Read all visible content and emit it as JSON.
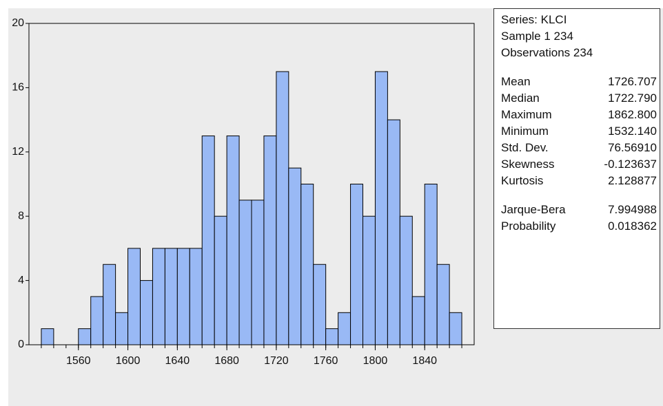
{
  "chart_data": {
    "type": "histogram",
    "bins": [
      1530,
      1540,
      1550,
      1560,
      1570,
      1580,
      1590,
      1600,
      1610,
      1620,
      1630,
      1640,
      1650,
      1660,
      1670,
      1680,
      1690,
      1700,
      1710,
      1720,
      1730,
      1740,
      1750,
      1760,
      1770,
      1780,
      1790,
      1800,
      1810,
      1820,
      1830,
      1840,
      1850,
      1860,
      1870
    ],
    "values": [
      1,
      0,
      0,
      1,
      3,
      5,
      2,
      6,
      4,
      6,
      6,
      6,
      6,
      13,
      8,
      13,
      9,
      9,
      13,
      17,
      11,
      10,
      5,
      1,
      2,
      10,
      8,
      17,
      14,
      8,
      3,
      10,
      5,
      2
    ],
    "color": "#99b9f5",
    "xlim": [
      1520,
      1880
    ],
    "xticks": [
      1560,
      1600,
      1640,
      1680,
      1720,
      1760,
      1800,
      1840
    ],
    "ylim": [
      0,
      20
    ],
    "yticks": [
      0,
      4,
      8,
      12,
      16,
      20
    ],
    "info": [
      "Series: KLCI",
      "Sample 1 234",
      "Observations 234"
    ],
    "stats": [
      {
        "label": "Mean",
        "value": "1726.707"
      },
      {
        "label": "Median",
        "value": "1722.790"
      },
      {
        "label": "Maximum",
        "value": "1862.800"
      },
      {
        "label": "Minimum",
        "value": "1532.140"
      },
      {
        "label": "Std. Dev.",
        "value": "76.56910"
      },
      {
        "label": "Skewness",
        "value": "-0.123637"
      },
      {
        "label": "Kurtosis",
        "value": "2.128877"
      }
    ],
    "tests": [
      {
        "label": "Jarque-Bera",
        "value": "7.994988"
      },
      {
        "label": "Probability",
        "value": "0.018362"
      }
    ]
  }
}
